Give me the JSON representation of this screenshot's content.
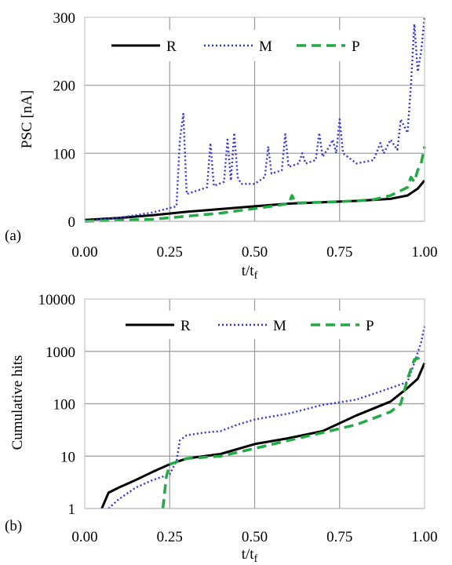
{
  "chart_data": [
    {
      "panel_label": "(a)",
      "type": "line",
      "xlabel": "t/t",
      "xlabel_sub": "f",
      "ylabel": "PSC [nA]",
      "xlim": [
        0,
        1
      ],
      "ylim": [
        0,
        300
      ],
      "xticks": [
        "0.00",
        "0.25",
        "0.50",
        "0.75",
        "1.00"
      ],
      "yticks": [
        "0",
        "100",
        "200",
        "300"
      ],
      "grid": true,
      "legend_position": "top",
      "series": [
        {
          "name": "R",
          "color": "#000000",
          "style": "solid",
          "x": [
            0,
            0.1,
            0.2,
            0.3,
            0.4,
            0.5,
            0.6,
            0.7,
            0.8,
            0.9,
            0.95,
            0.98,
            1.0
          ],
          "y": [
            2,
            5,
            9,
            14,
            18,
            22,
            26,
            28,
            30,
            33,
            38,
            48,
            60
          ]
        },
        {
          "name": "M",
          "color": "#3333dd",
          "style": "dotted",
          "x": [
            0,
            0.1,
            0.2,
            0.27,
            0.28,
            0.29,
            0.3,
            0.33,
            0.36,
            0.37,
            0.38,
            0.41,
            0.42,
            0.43,
            0.44,
            0.45,
            0.46,
            0.5,
            0.53,
            0.54,
            0.55,
            0.58,
            0.59,
            0.6,
            0.63,
            0.64,
            0.65,
            0.68,
            0.69,
            0.7,
            0.72,
            0.73,
            0.74,
            0.75,
            0.76,
            0.8,
            0.85,
            0.87,
            0.88,
            0.9,
            0.92,
            0.93,
            0.95,
            0.96,
            0.97,
            0.98,
            0.99,
            1.0
          ],
          "y": [
            1,
            5,
            13,
            22,
            120,
            158,
            40,
            45,
            50,
            115,
            52,
            58,
            120,
            60,
            130,
            65,
            55,
            55,
            65,
            110,
            70,
            75,
            128,
            80,
            85,
            100,
            85,
            90,
            130,
            95,
            110,
            120,
            100,
            150,
            100,
            85,
            90,
            115,
            100,
            120,
            105,
            150,
            130,
            200,
            290,
            220,
            250,
            300
          ]
        },
        {
          "name": "P",
          "color": "#22aa44",
          "style": "dashed",
          "x": [
            0,
            0.2,
            0.4,
            0.55,
            0.6,
            0.61,
            0.62,
            0.7,
            0.8,
            0.85,
            0.9,
            0.93,
            0.95,
            0.96,
            0.97,
            0.98,
            0.99,
            1.0
          ],
          "y": [
            0,
            3,
            12,
            22,
            26,
            38,
            27,
            28,
            30,
            32,
            38,
            45,
            50,
            65,
            58,
            75,
            85,
            110
          ]
        }
      ]
    },
    {
      "panel_label": "(b)",
      "type": "line",
      "xlabel": "t/t",
      "xlabel_sub": "f",
      "ylabel": "Cumulative hits",
      "xlim": [
        0,
        1
      ],
      "ylim": [
        1,
        10000
      ],
      "yscale": "log",
      "xticks": [
        "0.00",
        "0.25",
        "0.50",
        "0.75",
        "1.00"
      ],
      "yticks": [
        "1",
        "10",
        "100",
        "1000",
        "10000"
      ],
      "grid": true,
      "legend_position": "top",
      "series": [
        {
          "name": "R",
          "color": "#000000",
          "style": "solid",
          "x": [
            0.05,
            0.07,
            0.1,
            0.15,
            0.2,
            0.25,
            0.3,
            0.4,
            0.5,
            0.6,
            0.7,
            0.8,
            0.9,
            0.95,
            0.98,
            1.0
          ],
          "y": [
            1,
            2,
            2.5,
            3.5,
            5,
            7,
            9,
            11,
            17,
            22,
            30,
            60,
            110,
            200,
            300,
            600
          ]
        },
        {
          "name": "M",
          "color": "#3333dd",
          "style": "dotted",
          "x": [
            0.07,
            0.1,
            0.15,
            0.2,
            0.25,
            0.27,
            0.28,
            0.3,
            0.35,
            0.4,
            0.45,
            0.5,
            0.6,
            0.7,
            0.8,
            0.9,
            0.95,
            0.97,
            0.99,
            1.0
          ],
          "y": [
            1,
            1.5,
            2.5,
            3.5,
            4.5,
            8,
            20,
            25,
            28,
            30,
            40,
            50,
            65,
            95,
            120,
            200,
            260,
            600,
            1500,
            3000
          ]
        },
        {
          "name": "P",
          "color": "#22aa44",
          "style": "dashed",
          "x": [
            0.23,
            0.24,
            0.25,
            0.3,
            0.4,
            0.5,
            0.6,
            0.7,
            0.8,
            0.9,
            0.93,
            0.95,
            0.97,
            1.0
          ],
          "y": [
            1,
            4,
            7,
            9,
            10,
            14,
            20,
            28,
            40,
            70,
            100,
            300,
            700,
            800
          ]
        }
      ]
    }
  ]
}
